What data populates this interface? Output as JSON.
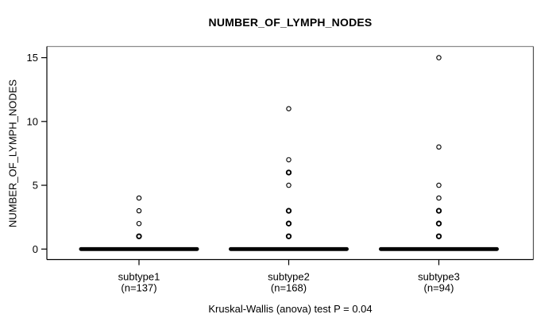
{
  "chart_data": {
    "type": "scatter",
    "subtype": "stripchart-with-dense-band",
    "title": "NUMBER_OF_LYMPH_NODES",
    "ylabel": "NUMBER_OF_LYMPH_NODES",
    "caption": "Kruskal-Wallis (anova) test P = 0.04",
    "ylim": [
      0,
      15
    ],
    "yticks": [
      0,
      5,
      10,
      15
    ],
    "grid": false,
    "legend": "none",
    "point_style": "open-circle",
    "color": "#000000",
    "background": "#ffffff",
    "groups": [
      {
        "label": "subtype1",
        "sublabel": "(n=137)",
        "n": 137,
        "points": [
          4,
          3,
          2,
          1
        ],
        "emphasized_points": [
          1
        ],
        "dense_band_at": 0
      },
      {
        "label": "subtype2",
        "sublabel": "(n=168)",
        "n": 168,
        "points": [
          11,
          7,
          6,
          5,
          3,
          2,
          1
        ],
        "emphasized_points": [
          6,
          3,
          2,
          1
        ],
        "dense_band_at": 0
      },
      {
        "label": "subtype3",
        "sublabel": "(n=94)",
        "n": 94,
        "points": [
          15,
          8,
          5,
          4,
          3,
          2,
          1
        ],
        "emphasized_points": [
          3,
          2,
          1
        ],
        "dense_band_at": 0
      }
    ]
  }
}
